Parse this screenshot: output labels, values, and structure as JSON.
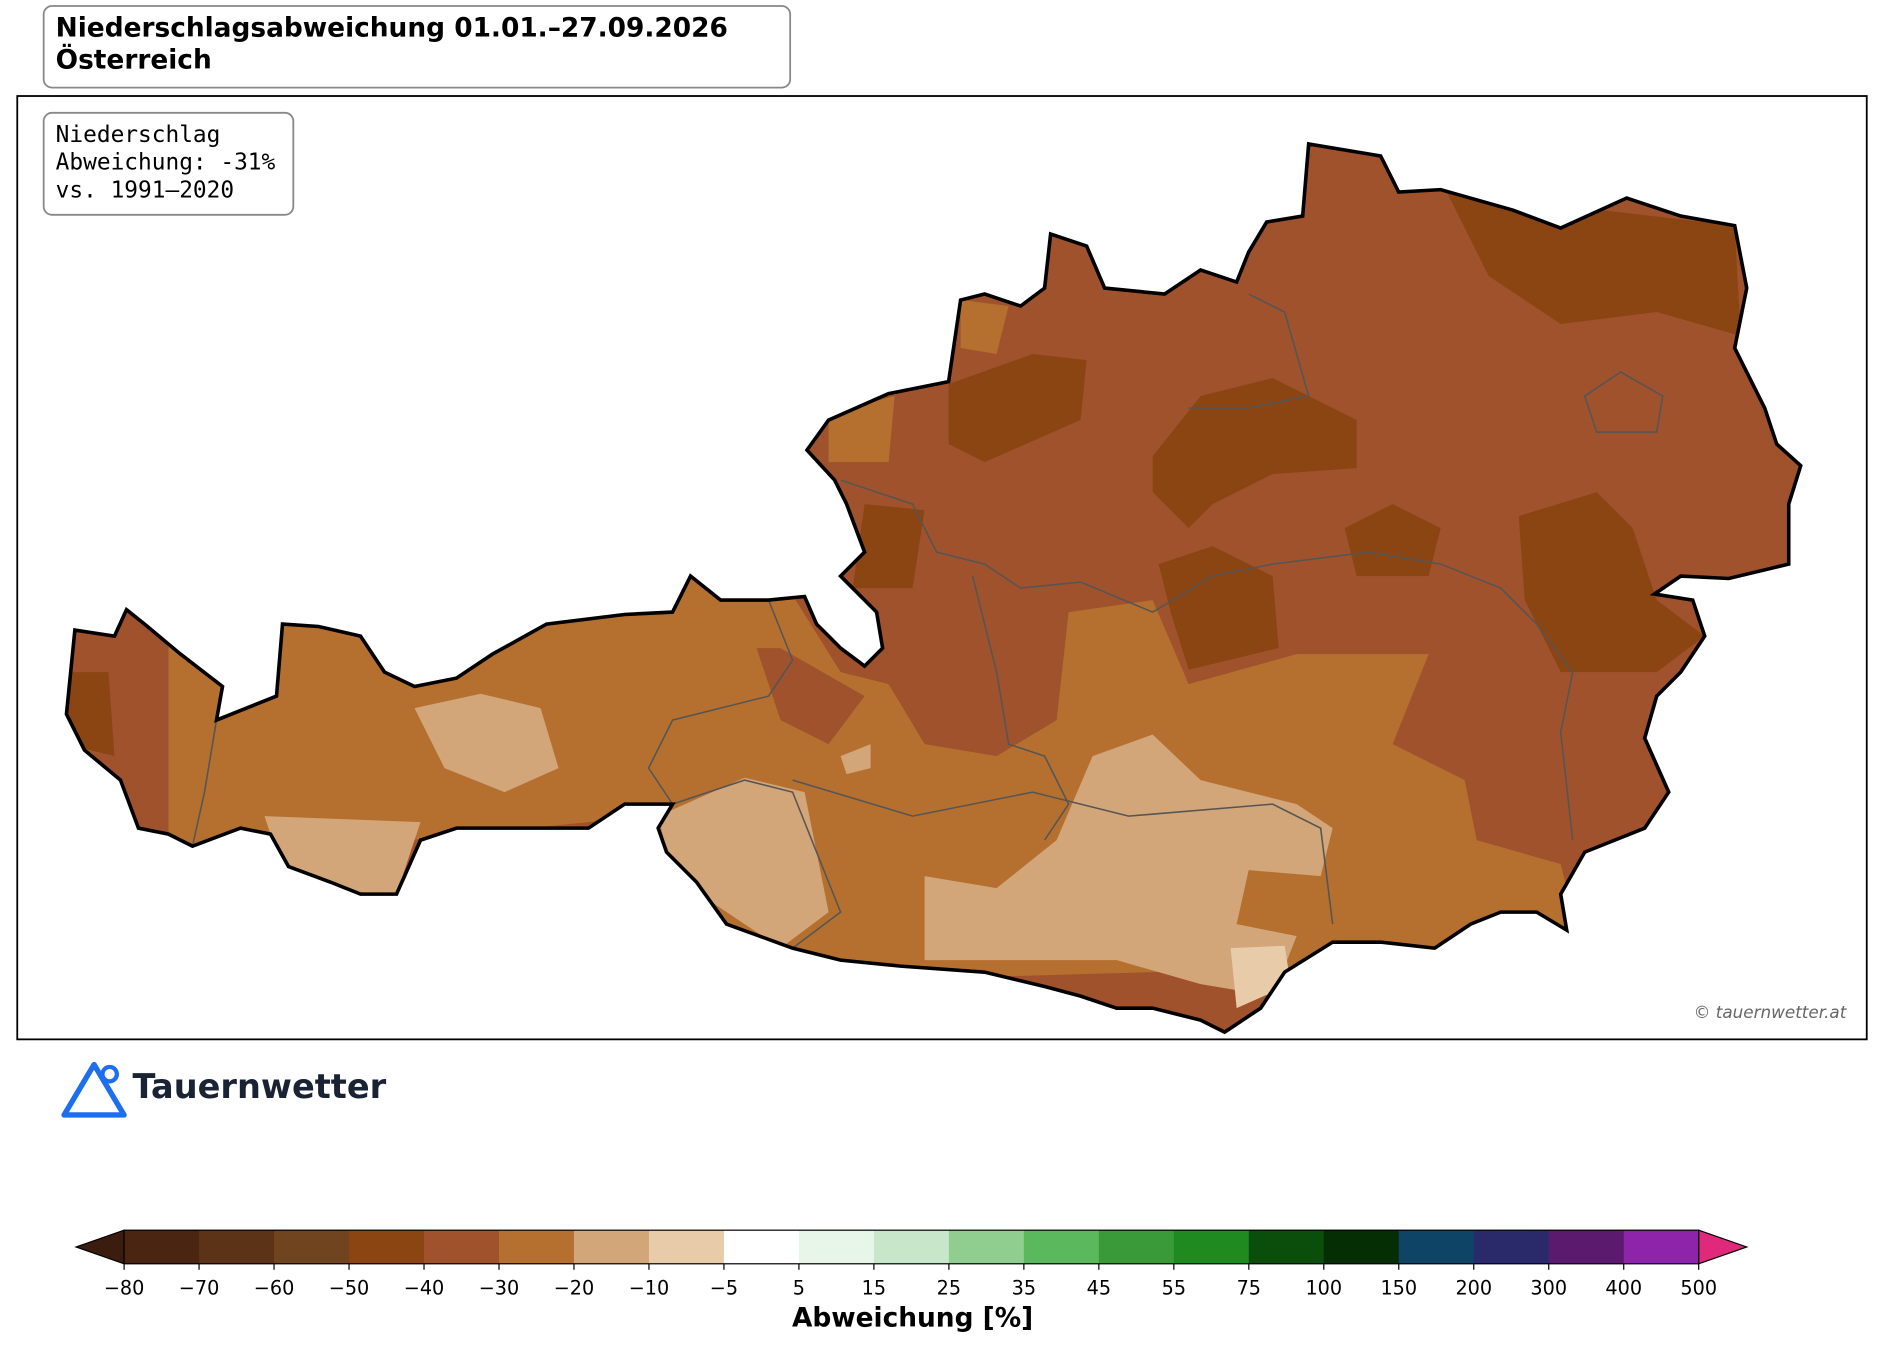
{
  "header": {
    "title_lines": [
      "Niederschlagsabweichung 01.01.–27.09.2026",
      "Österreich"
    ]
  },
  "info_box": {
    "lines": [
      "Niederschlag",
      "Abweichung: -31%",
      "vs. 1991–2020"
    ]
  },
  "credit": "© tauernwetter.at",
  "logo": "Tauernwetter",
  "colorbar": {
    "label": "Abweichung [%]",
    "ticks": [
      {
        "value": -80,
        "label": "−80"
      },
      {
        "value": -70,
        "label": "−70"
      },
      {
        "value": -60,
        "label": "−60"
      },
      {
        "value": -50,
        "label": "−50"
      },
      {
        "value": -40,
        "label": "−40"
      },
      {
        "value": -30,
        "label": "−30"
      },
      {
        "value": -20,
        "label": "−20"
      },
      {
        "value": -10,
        "label": "−10"
      },
      {
        "value": -5,
        "label": "−5"
      },
      5,
      15,
      25,
      35,
      45,
      55,
      75,
      100,
      150,
      200,
      300,
      400,
      500
    ],
    "colors": [
      "#4a2511",
      "#5c3317",
      "#70441f",
      "#8b4513",
      "#a0522d",
      "#b5702f",
      "#d2a679",
      "#e8cba8",
      "#ffffff",
      "#e8f5e9",
      "#c8e6c9",
      "#8fce8f",
      "#5cb85c",
      "#3a9a3a",
      "#1f8a1f",
      "#0b4d0b",
      "#052e05",
      "#0e4466",
      "#2a2a6b",
      "#5b1a6e",
      "#8e24aa"
    ],
    "extend_colors": [
      "#3a1d0e",
      "#e0297a"
    ]
  }
}
